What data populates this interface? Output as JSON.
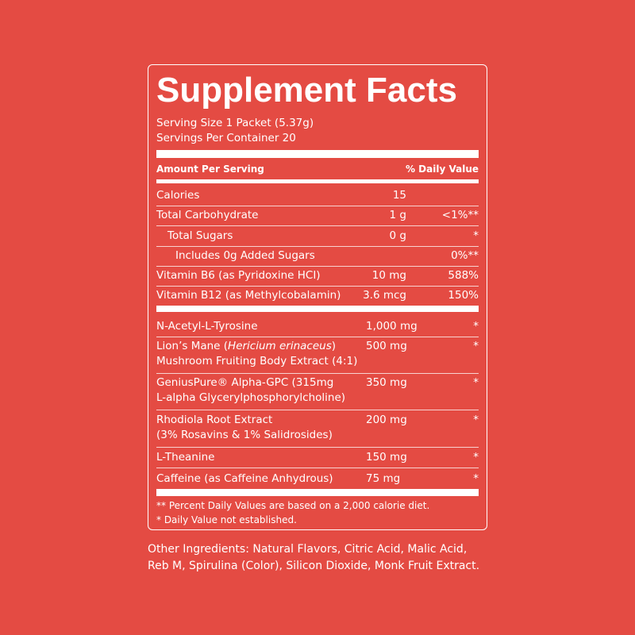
{
  "panel": {
    "title": "Supplement Facts",
    "serving_size": "Serving Size 1 Packet (5.37g)",
    "servings_per_container": "Servings Per Container 20",
    "header_amount": "Amount Per Serving",
    "header_dv": "% Daily Value",
    "rows": [
      {
        "name": "Calories",
        "amount": "15",
        "dv": ""
      },
      {
        "name": "Total Carbohydrate",
        "amount": "1 g",
        "dv": "<1%**"
      },
      {
        "name": "Total Sugars",
        "amount": "0 g",
        "dv": "*"
      },
      {
        "name": "Includes 0g Added Sugars",
        "amount": "",
        "dv": "0%**"
      },
      {
        "name": "Vitamin B6 (as Pyridoxine HCI)",
        "amount": "10 mg",
        "dv": "588%"
      },
      {
        "name": "Vitamin B12 (as Methylcobalamin)",
        "amount": "3.6 mcg",
        "dv": "150%"
      }
    ],
    "blend": [
      {
        "name": "N-Acetyl-L-Tyrosine",
        "amount": "1,000 mg",
        "dv": "*"
      },
      {
        "name_pre": "Lion’s Mane (",
        "name_italic": "Hericium erinaceus",
        "name_post": ")",
        "name2": "Mushroom Fruiting Body Extract (4:1)",
        "amount": "500 mg",
        "dv": "*"
      },
      {
        "name": "GeniusPure® Alpha-GPC (315mg",
        "name2": "L-alpha Glycerylphosphorylcholine)",
        "amount": "350 mg",
        "dv": "*"
      },
      {
        "name": "Rhodiola Root Extract",
        "name2": "(3% Rosavins & 1% Salidrosides)",
        "amount": "200 mg",
        "dv": "*"
      },
      {
        "name": "L-Theanine",
        "amount": "150 mg",
        "dv": "*"
      },
      {
        "name": "Caffeine (as Caffeine Anhydrous)",
        "amount": "75 mg",
        "dv": "*"
      }
    ],
    "footnote1": "** Percent Daily Values are based on a 2,000 calorie diet.",
    "footnote2": "* Daily Value not established."
  },
  "other_ingredients": {
    "line1": "Other Ingredients: Natural Flavors, Citric Acid, Malic Acid,",
    "line2": "Reb M, Spirulina (Color), Silicon Dioxide, Monk Fruit Extract."
  },
  "colors": {
    "background": "#E44B43",
    "text": "#FFFFFF"
  }
}
